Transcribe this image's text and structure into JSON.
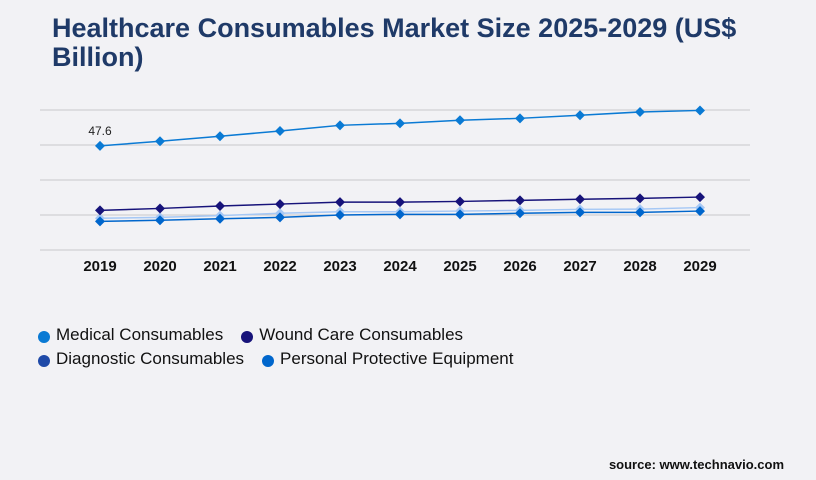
{
  "title": "Healthcare Consumables Market Size 2025-2029 (US$ Billion)",
  "source": "source: www.technavio.com",
  "chart_data": {
    "type": "line",
    "title": "Healthcare Consumables Market Size 2025-2029 (US$ Billion)",
    "xlabel": "",
    "ylabel": "",
    "ylim": [
      0,
      64
    ],
    "y_gridlines": [
      0,
      16,
      32,
      48,
      64
    ],
    "grid": true,
    "legend_placement": "bottom-left",
    "categories": [
      "2019",
      "2020",
      "2021",
      "2022",
      "2023",
      "2024",
      "2025",
      "2026",
      "2027",
      "2028",
      "2029"
    ],
    "annotations": [
      {
        "series": "Medical Consumables",
        "x": "2019",
        "label": "47.6"
      }
    ],
    "series": [
      {
        "name": "Medical Consumables",
        "line_color": "#0a7ad4",
        "legend_color": "#0a7ad4",
        "values": [
          47.6,
          49.7,
          52.0,
          54.4,
          57.0,
          57.9,
          59.3,
          60.2,
          61.6,
          63.1,
          63.8
        ]
      },
      {
        "name": "Wound Care Consumables",
        "line_color": "#17137a",
        "legend_color": "#17137a",
        "values": [
          18.1,
          19.0,
          20.1,
          21.0,
          21.9,
          21.9,
          22.2,
          22.7,
          23.2,
          23.6,
          24.2
        ]
      },
      {
        "name": "Diagnostic Consumables",
        "line_color": "#a6c8f5",
        "legend_color": "#1f4aa8",
        "values": [
          14.5,
          14.9,
          15.7,
          16.8,
          17.5,
          17.5,
          17.8,
          18.1,
          18.6,
          18.7,
          19.4
        ]
      },
      {
        "name": "Personal Protective Equipment",
        "line_color": "#0066cc",
        "legend_color": "#0066cc",
        "values": [
          13.1,
          13.6,
          14.3,
          14.9,
          16.0,
          16.3,
          16.3,
          16.8,
          17.2,
          17.2,
          17.8
        ]
      }
    ]
  }
}
